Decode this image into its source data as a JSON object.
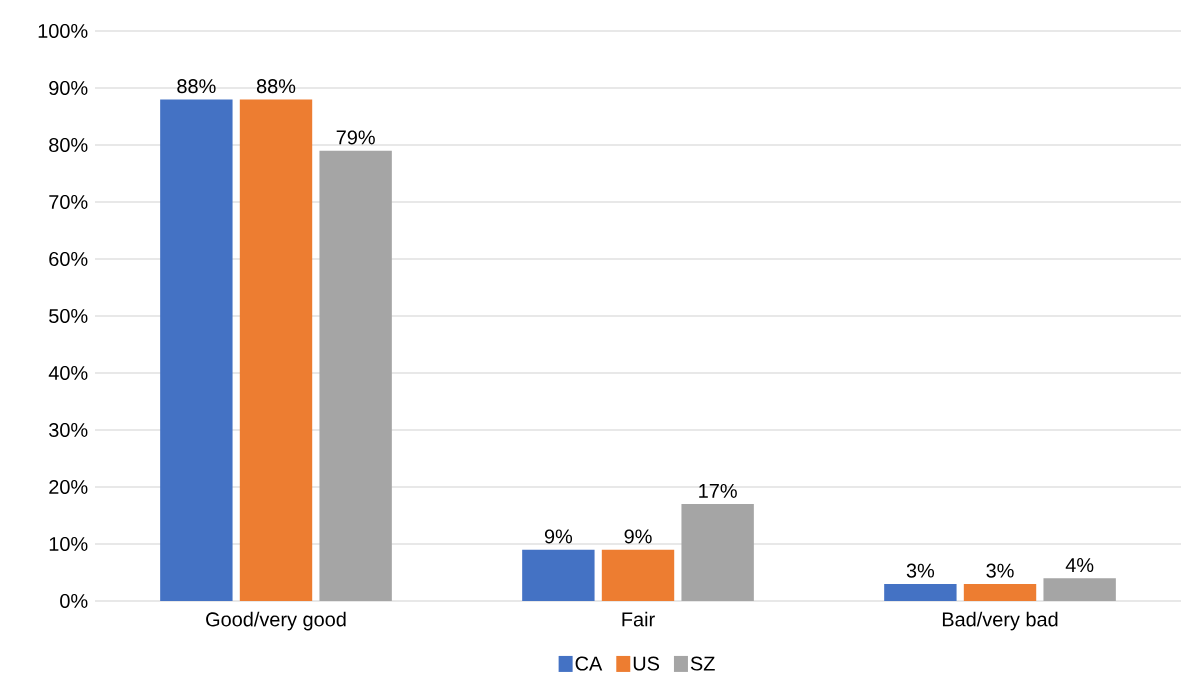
{
  "chart_data": {
    "type": "bar",
    "categories": [
      "Good/very good",
      "Fair",
      "Bad/very bad"
    ],
    "series": [
      {
        "name": "CA",
        "color": "#4472c4",
        "values": [
          88,
          9,
          3
        ],
        "value_labels": [
          "88%",
          "9%",
          "3%"
        ]
      },
      {
        "name": "US",
        "color": "#ed7d31",
        "values": [
          88,
          9,
          3
        ],
        "value_labels": [
          "88%",
          "9%",
          "3%"
        ]
      },
      {
        "name": "SZ",
        "color": "#a5a5a5",
        "values": [
          79,
          17,
          4
        ],
        "value_labels": [
          "79%",
          "17%",
          "4%"
        ]
      }
    ],
    "ylim": [
      0,
      100
    ],
    "yticks": [
      {
        "value": 0,
        "label": "0%"
      },
      {
        "value": 10,
        "label": "10%"
      },
      {
        "value": 20,
        "label": "20%"
      },
      {
        "value": 30,
        "label": "30%"
      },
      {
        "value": 40,
        "label": "40%"
      },
      {
        "value": 50,
        "label": "50%"
      },
      {
        "value": 60,
        "label": "60%"
      },
      {
        "value": 70,
        "label": "70%"
      },
      {
        "value": 80,
        "label": "80%"
      },
      {
        "value": 90,
        "label": "90%"
      },
      {
        "value": 100,
        "label": "100%"
      }
    ],
    "grid": "y",
    "legend": "bottom"
  }
}
